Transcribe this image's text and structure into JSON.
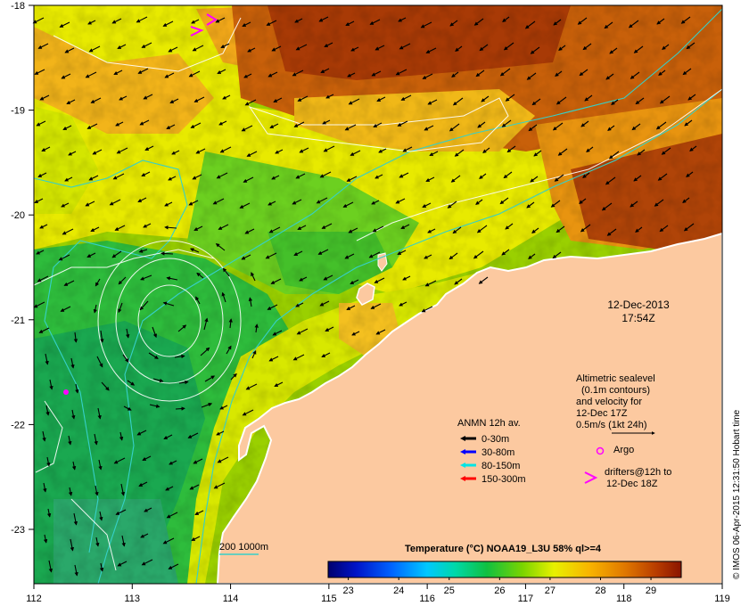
{
  "map": {
    "longitudes": [
      112,
      113,
      114,
      115,
      116,
      117,
      118,
      119
    ],
    "latitudes": [
      -18,
      -19,
      -20,
      -21,
      -22,
      -23
    ],
    "lon_range": [
      112,
      119
    ],
    "lat_range": [
      -23.5,
      -18
    ]
  },
  "date_label": {
    "date": "12-Dec-2013",
    "time": "17:54Z"
  },
  "altimetry_note": {
    "line1": "Altimetric sealevel",
    "line2": "(0.1m contours)",
    "line3": "and velocity for",
    "line4": "12-Dec 17Z",
    "line5": "0.5m/s (1kt 24h)"
  },
  "anmn_legend": {
    "title": "ANMN 12h av.",
    "items": [
      {
        "label": "0-30m",
        "color": "#000000"
      },
      {
        "label": "30-80m",
        "color": "#0000ff"
      },
      {
        "label": "80-150m",
        "color": "#00e5e5"
      },
      {
        "label": "150-300m",
        "color": "#ff0000"
      }
    ]
  },
  "argo_label": "Argo",
  "drifter_label": {
    "line1": "drifters@12h to",
    "line2": "12-Dec 18Z"
  },
  "isobath_label": "200  1000m",
  "colorbar": {
    "title": "Temperature (°C) NOAA19_L3U 58% ql>=4",
    "ticks": [
      23,
      24,
      25,
      26,
      27,
      28,
      29
    ],
    "range": [
      22.6,
      29.6
    ]
  },
  "credit": "© IMOS 06-Apr-2015 12:31:50 Hobart time",
  "colors": {
    "land": "#fcc9a0",
    "argo": "#ff00ff",
    "drifter": "#ff00ff",
    "isobath": "#36d0c8",
    "contour": "#ffffff"
  }
}
